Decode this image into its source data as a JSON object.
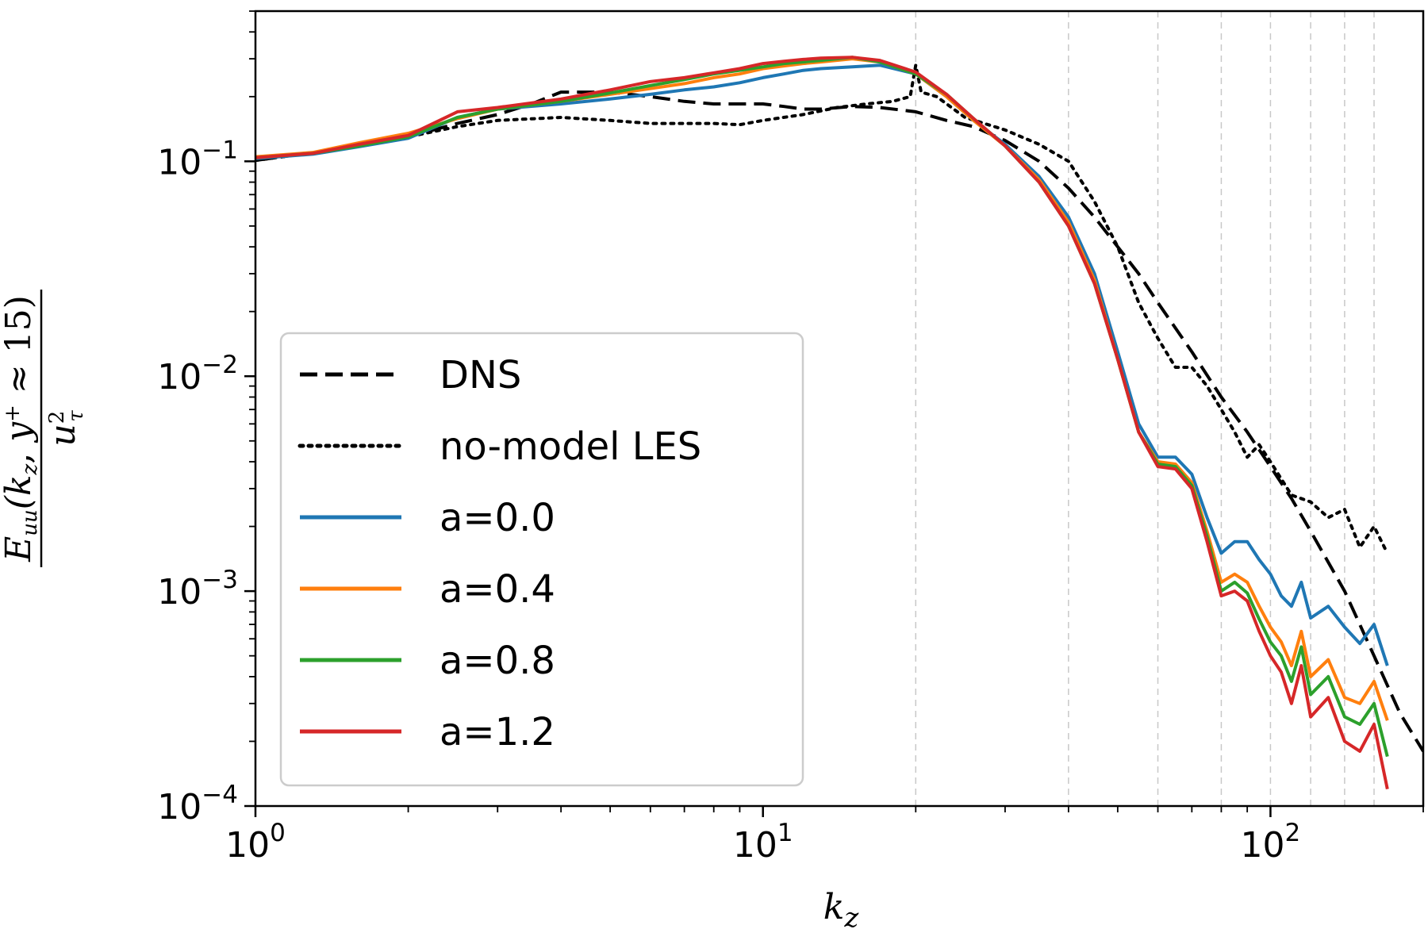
{
  "chart_data": {
    "type": "line",
    "xscale": "log",
    "yscale": "log",
    "xlim": [
      1,
      200
    ],
    "ylim": [
      0.0001,
      0.5
    ],
    "xlabel": "k_z",
    "ylabel": "E_uu(k_z, y+ ≈ 15) / u_τ²",
    "x_ticks": [
      {
        "value": 1,
        "base": "10",
        "exp": "0"
      },
      {
        "value": 10,
        "base": "10",
        "exp": "1"
      },
      {
        "value": 100,
        "base": "10",
        "exp": "2"
      }
    ],
    "y_ticks": [
      {
        "value": 0.1,
        "base": "10",
        "exp": "−1"
      },
      {
        "value": 0.01,
        "base": "10",
        "exp": "−2"
      },
      {
        "value": 0.001,
        "base": "10",
        "exp": "−3"
      },
      {
        "value": 0.0001,
        "base": "10",
        "exp": "−4"
      }
    ],
    "vertical_reference_lines": [
      20,
      40,
      60,
      80,
      100,
      120,
      140,
      160
    ],
    "legend_position": "lower-left",
    "series": [
      {
        "name": "DNS",
        "color": "#000000",
        "style": "dashed",
        "x": [
          1,
          1.5,
          2,
          2.5,
          3,
          3.5,
          4,
          5,
          6,
          7,
          8,
          9,
          10,
          11,
          12,
          13,
          15,
          17,
          20,
          23,
          26,
          30,
          35,
          40,
          45,
          50,
          55,
          60,
          70,
          80,
          90,
          100,
          110,
          120,
          140,
          160,
          180,
          200
        ],
        "y": [
          0.101,
          0.115,
          0.13,
          0.15,
          0.165,
          0.185,
          0.21,
          0.21,
          0.2,
          0.19,
          0.185,
          0.185,
          0.185,
          0.18,
          0.175,
          0.175,
          0.18,
          0.178,
          0.17,
          0.155,
          0.145,
          0.125,
          0.1,
          0.075,
          0.055,
          0.04,
          0.03,
          0.022,
          0.013,
          0.008,
          0.0055,
          0.0038,
          0.0027,
          0.0019,
          0.001,
          0.0005,
          0.00027,
          0.00018
        ]
      },
      {
        "name": "no-model LES",
        "color": "#000000",
        "style": "dotted",
        "x": [
          1,
          1.5,
          2,
          2.5,
          3,
          4,
          5,
          6,
          7,
          8,
          9,
          10,
          12,
          14,
          16,
          18,
          19.5,
          20,
          20.5,
          22,
          25,
          30,
          35,
          40,
          45,
          50,
          55,
          60,
          65,
          70,
          75,
          80,
          85,
          90,
          95,
          100,
          110,
          120,
          130,
          140,
          150,
          160,
          170
        ],
        "y": [
          0.101,
          0.115,
          0.13,
          0.145,
          0.155,
          0.16,
          0.155,
          0.15,
          0.15,
          0.15,
          0.148,
          0.155,
          0.165,
          0.178,
          0.185,
          0.19,
          0.2,
          0.28,
          0.21,
          0.2,
          0.16,
          0.14,
          0.12,
          0.1,
          0.065,
          0.04,
          0.022,
          0.015,
          0.011,
          0.011,
          0.009,
          0.007,
          0.0055,
          0.0042,
          0.0048,
          0.004,
          0.0028,
          0.0026,
          0.0022,
          0.0024,
          0.0016,
          0.002,
          0.0015
        ]
      },
      {
        "name": "a=0.0",
        "color": "#1f77b4",
        "style": "solid",
        "x": [
          1,
          1.3,
          1.6,
          2,
          2.5,
          3,
          4,
          5,
          6,
          7,
          8,
          9,
          10,
          11,
          12,
          13,
          15,
          17,
          20,
          23,
          26,
          30,
          35,
          40,
          45,
          50,
          55,
          60,
          65,
          70,
          75,
          80,
          85,
          90,
          95,
          100,
          105,
          110,
          115,
          120,
          130,
          140,
          150,
          160,
          170
        ],
        "y": [
          0.103,
          0.108,
          0.117,
          0.128,
          0.16,
          0.175,
          0.185,
          0.195,
          0.205,
          0.215,
          0.222,
          0.232,
          0.245,
          0.255,
          0.265,
          0.27,
          0.275,
          0.28,
          0.255,
          0.2,
          0.155,
          0.12,
          0.085,
          0.055,
          0.03,
          0.013,
          0.006,
          0.0042,
          0.0042,
          0.0035,
          0.0022,
          0.0015,
          0.0017,
          0.0017,
          0.0014,
          0.0012,
          0.00095,
          0.00085,
          0.0011,
          0.00075,
          0.00085,
          0.00068,
          0.00057,
          0.0007,
          0.00045
        ]
      },
      {
        "name": "a=0.4",
        "color": "#ff7f0e",
        "style": "solid",
        "x": [
          1,
          1.3,
          1.6,
          2,
          2.5,
          3,
          4,
          5,
          6,
          7,
          8,
          9,
          10,
          11,
          12,
          13,
          15,
          17,
          20,
          23,
          26,
          30,
          35,
          40,
          45,
          50,
          55,
          60,
          65,
          70,
          75,
          80,
          85,
          90,
          95,
          100,
          105,
          110,
          115,
          120,
          130,
          140,
          150,
          160,
          170
        ],
        "y": [
          0.105,
          0.11,
          0.122,
          0.135,
          0.158,
          0.175,
          0.19,
          0.205,
          0.218,
          0.23,
          0.245,
          0.255,
          0.27,
          0.278,
          0.285,
          0.29,
          0.3,
          0.29,
          0.255,
          0.2,
          0.155,
          0.118,
          0.082,
          0.052,
          0.028,
          0.012,
          0.0055,
          0.004,
          0.0039,
          0.0032,
          0.0019,
          0.0011,
          0.0012,
          0.0011,
          0.00085,
          0.00068,
          0.00058,
          0.00045,
          0.00065,
          0.0004,
          0.00048,
          0.00032,
          0.0003,
          0.00038,
          0.00025
        ]
      },
      {
        "name": "a=0.8",
        "color": "#2ca02c",
        "style": "solid",
        "x": [
          1,
          1.3,
          1.6,
          2,
          2.5,
          3,
          4,
          5,
          6,
          7,
          8,
          9,
          10,
          11,
          12,
          13,
          15,
          17,
          20,
          23,
          26,
          30,
          35,
          40,
          45,
          50,
          55,
          60,
          65,
          70,
          75,
          80,
          85,
          90,
          95,
          100,
          105,
          110,
          115,
          120,
          130,
          140,
          150,
          160,
          170
        ],
        "y": [
          0.104,
          0.109,
          0.118,
          0.13,
          0.16,
          0.175,
          0.19,
          0.208,
          0.225,
          0.24,
          0.255,
          0.265,
          0.275,
          0.285,
          0.29,
          0.295,
          0.305,
          0.29,
          0.255,
          0.205,
          0.158,
          0.118,
          0.08,
          0.05,
          0.027,
          0.012,
          0.0055,
          0.0039,
          0.0038,
          0.0031,
          0.0018,
          0.001,
          0.0011,
          0.00098,
          0.00074,
          0.00058,
          0.0005,
          0.00038,
          0.00055,
          0.00033,
          0.0004,
          0.00026,
          0.00024,
          0.0003,
          0.00017
        ]
      },
      {
        "name": "a=1.2",
        "color": "#d62728",
        "style": "solid",
        "x": [
          1,
          1.3,
          1.6,
          2,
          2.5,
          3,
          4,
          5,
          6,
          7,
          8,
          9,
          10,
          11,
          12,
          13,
          15,
          17,
          20,
          23,
          26,
          30,
          35,
          40,
          45,
          50,
          55,
          60,
          65,
          70,
          75,
          80,
          85,
          90,
          95,
          100,
          105,
          110,
          115,
          120,
          130,
          140,
          150,
          160,
          170
        ],
        "y": [
          0.104,
          0.109,
          0.12,
          0.132,
          0.17,
          0.178,
          0.195,
          0.215,
          0.235,
          0.245,
          0.258,
          0.27,
          0.285,
          0.292,
          0.298,
          0.302,
          0.305,
          0.295,
          0.26,
          0.205,
          0.158,
          0.118,
          0.08,
          0.05,
          0.027,
          0.012,
          0.0055,
          0.0038,
          0.0037,
          0.003,
          0.0017,
          0.00095,
          0.001,
          0.0009,
          0.00065,
          0.0005,
          0.00042,
          0.0003,
          0.00045,
          0.00026,
          0.00032,
          0.0002,
          0.00018,
          0.00024,
          0.00012
        ]
      }
    ]
  }
}
